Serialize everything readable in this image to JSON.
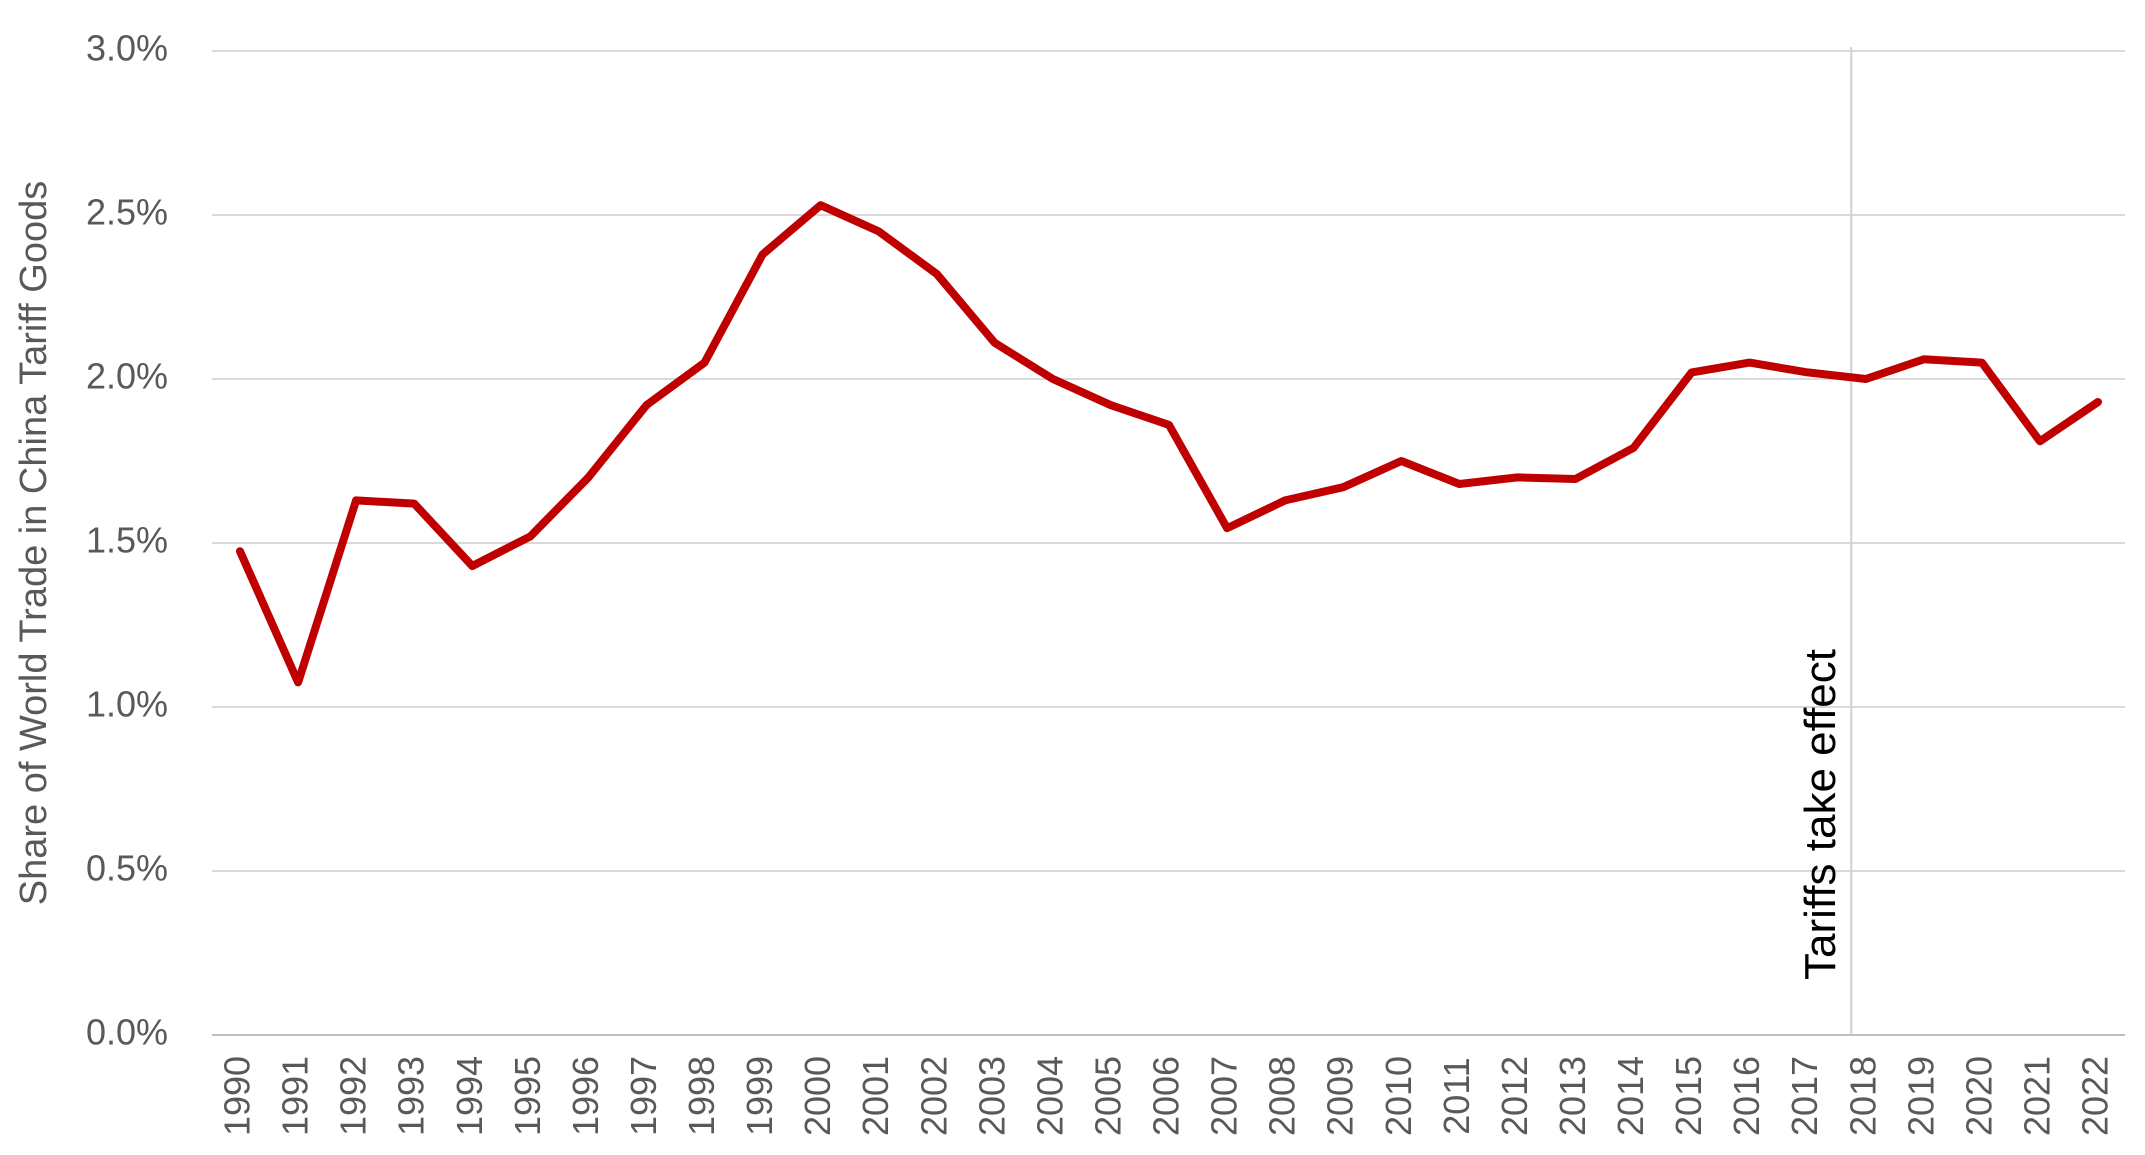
{
  "chart_data": {
    "type": "line",
    "ylabel": "Share of World Trade in China Tariff Goods",
    "xlabel": "",
    "ylim": [
      0,
      0.03
    ],
    "yticks": [
      "0.0%",
      "0.5%",
      "1.0%",
      "1.5%",
      "2.0%",
      "2.5%",
      "3.0%"
    ],
    "ytick_values": [
      0,
      0.005,
      0.01,
      0.015,
      0.02,
      0.025,
      0.03
    ],
    "x": [
      "1990",
      "1991",
      "1992",
      "1993",
      "1994",
      "1995",
      "1996",
      "1997",
      "1998",
      "1999",
      "2000",
      "2001",
      "2002",
      "2003",
      "2004",
      "2005",
      "2006",
      "2007",
      "2008",
      "2009",
      "2010",
      "2011",
      "2012",
      "2013",
      "2014",
      "2015",
      "2016",
      "2017",
      "2018",
      "2019",
      "2020",
      "2021",
      "2022"
    ],
    "series": [
      {
        "values": [
          0.01475,
          0.01075,
          0.0163,
          0.0162,
          0.0143,
          0.0152,
          0.017,
          0.0192,
          0.0205,
          0.0238,
          0.0253,
          0.0245,
          0.0232,
          0.0211,
          0.02,
          0.0192,
          0.0186,
          0.01545,
          0.0163,
          0.0167,
          0.0175,
          0.0168,
          0.017,
          0.01695,
          0.0179,
          0.0202,
          0.0205,
          0.0202,
          0.02,
          0.0206,
          0.0205,
          0.0181,
          0.0193
        ],
        "color": "#c00000"
      }
    ],
    "grid": true,
    "annotations": [
      {
        "text": "Tariffs take effect",
        "x": "2017.75",
        "type": "vertical-line"
      }
    ]
  }
}
